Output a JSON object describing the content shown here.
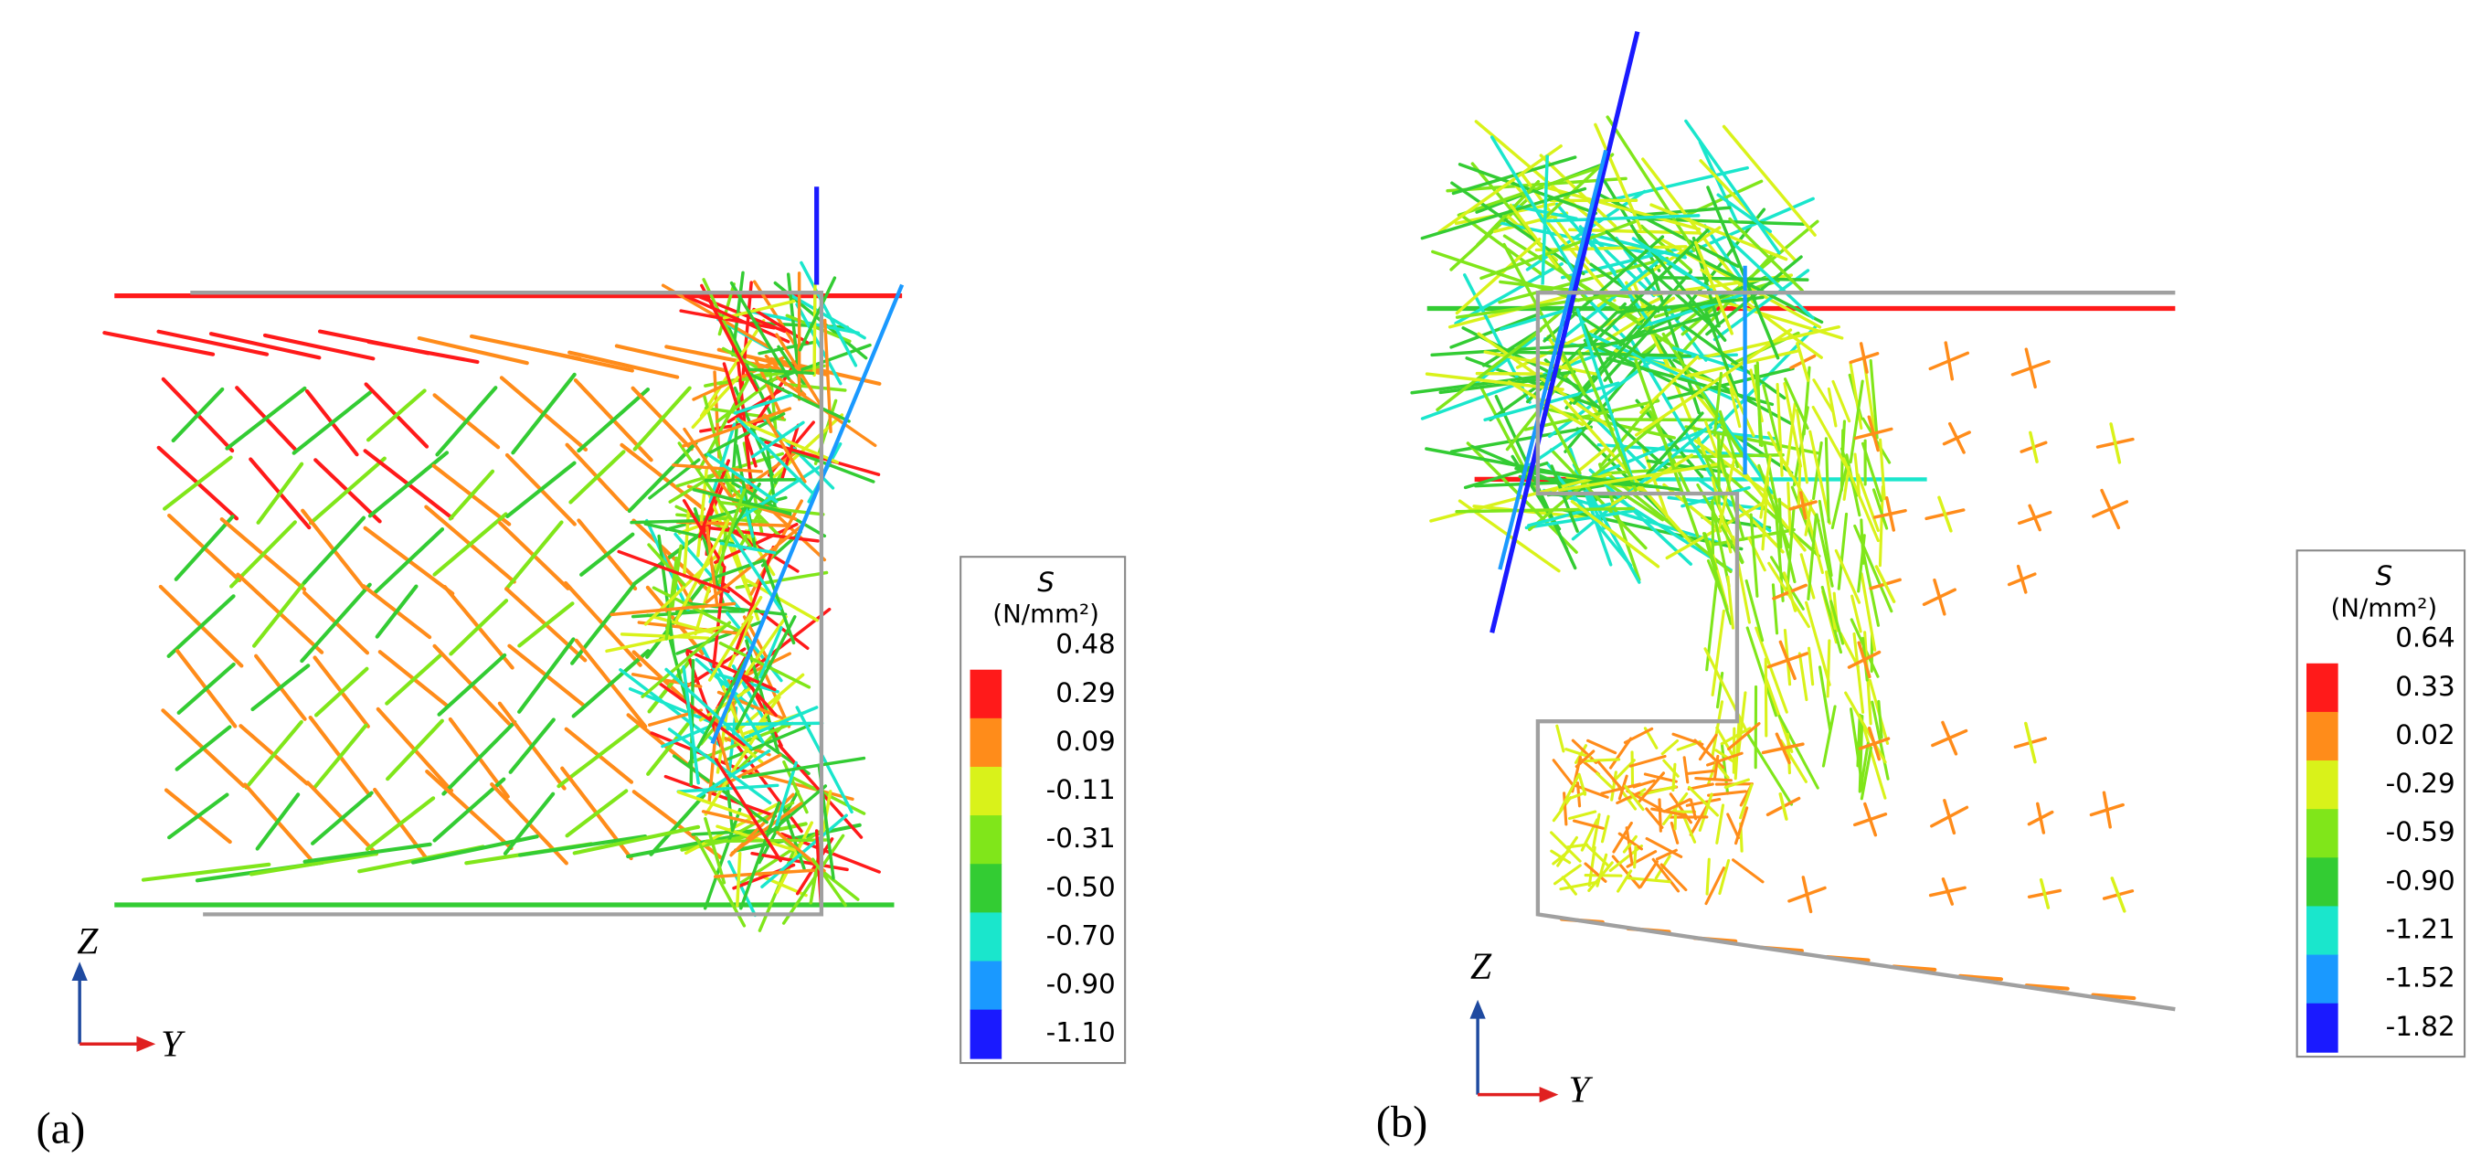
{
  "panels": [
    {
      "label": "(a)",
      "axes": {
        "vertical": "Z",
        "horizontal": "Y"
      },
      "legend": {
        "symbol": "S",
        "unit": "(N/mm²)",
        "ticks": [
          "0.48",
          "0.29",
          "0.09",
          "-0.11",
          "-0.31",
          "-0.50",
          "-0.70",
          "-0.90",
          "-1.10"
        ],
        "colors": [
          "#ff1a1a",
          "#ff8c1a",
          "#d9f21a",
          "#80e61a",
          "#33cc33",
          "#1ae6cc",
          "#1a99ff",
          "#1a1aff"
        ]
      }
    },
    {
      "label": "(b)",
      "axes": {
        "vertical": "Z",
        "horizontal": "Y"
      },
      "legend": {
        "symbol": "S",
        "unit": "(N/mm²)",
        "ticks": [
          "0.64",
          "0.33",
          "0.02",
          "-0.29",
          "-0.59",
          "-0.90",
          "-1.21",
          "-1.52",
          "-1.82"
        ],
        "colors": [
          "#ff1a1a",
          "#ff8c1a",
          "#d9f21a",
          "#80e61a",
          "#33cc33",
          "#1ae6cc",
          "#1a99ff",
          "#1a1aff"
        ]
      }
    }
  ]
}
